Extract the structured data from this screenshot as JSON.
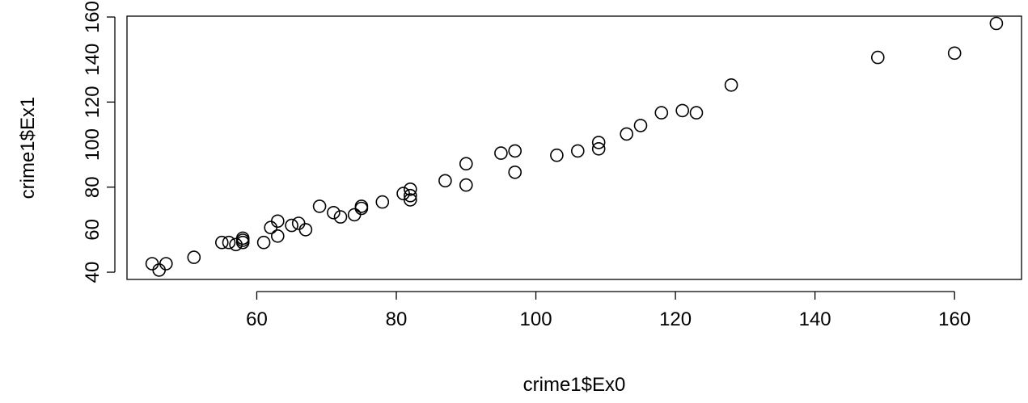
{
  "chart_data": {
    "type": "scatter",
    "title": "",
    "xlabel": "crime1$Ex0",
    "ylabel": "crime1$Ex1",
    "xlim": [
      41.4,
      169.6
    ],
    "ylim": [
      36.6,
      160.4
    ],
    "xticks": [
      60,
      80,
      100,
      120,
      140,
      160
    ],
    "yticks": [
      40,
      80,
      120,
      160
    ],
    "ytick_labels": [
      "40",
      "60",
      "80",
      "100",
      "120",
      "140",
      "160"
    ],
    "ytick_label_values": [
      40,
      60,
      80,
      100,
      120,
      140,
      160
    ],
    "grid": false,
    "marker": "open-circle",
    "series": [
      {
        "points": [
          [
            45,
            44
          ],
          [
            46,
            41
          ],
          [
            47,
            44
          ],
          [
            51,
            47
          ],
          [
            55,
            54
          ],
          [
            56,
            54
          ],
          [
            57,
            53
          ],
          [
            58,
            55
          ],
          [
            58,
            54
          ],
          [
            58,
            56
          ],
          [
            61,
            54
          ],
          [
            62,
            61
          ],
          [
            63,
            57
          ],
          [
            63,
            64
          ],
          [
            65,
            62
          ],
          [
            66,
            63
          ],
          [
            67,
            60
          ],
          [
            69,
            71
          ],
          [
            71,
            68
          ],
          [
            72,
            66
          ],
          [
            74,
            67
          ],
          [
            75,
            70
          ],
          [
            75,
            71
          ],
          [
            78,
            73
          ],
          [
            81,
            77
          ],
          [
            82,
            74
          ],
          [
            82,
            76
          ],
          [
            82,
            79
          ],
          [
            87,
            83
          ],
          [
            90,
            81
          ],
          [
            90,
            91
          ],
          [
            95,
            96
          ],
          [
            97,
            87
          ],
          [
            97,
            97
          ],
          [
            103,
            95
          ],
          [
            106,
            97
          ],
          [
            109,
            98
          ],
          [
            109,
            101
          ],
          [
            113,
            105
          ],
          [
            115,
            109
          ],
          [
            118,
            115
          ],
          [
            121,
            116
          ],
          [
            123,
            115
          ],
          [
            128,
            128
          ],
          [
            149,
            141
          ],
          [
            160,
            143
          ],
          [
            166,
            157
          ]
        ]
      }
    ]
  }
}
